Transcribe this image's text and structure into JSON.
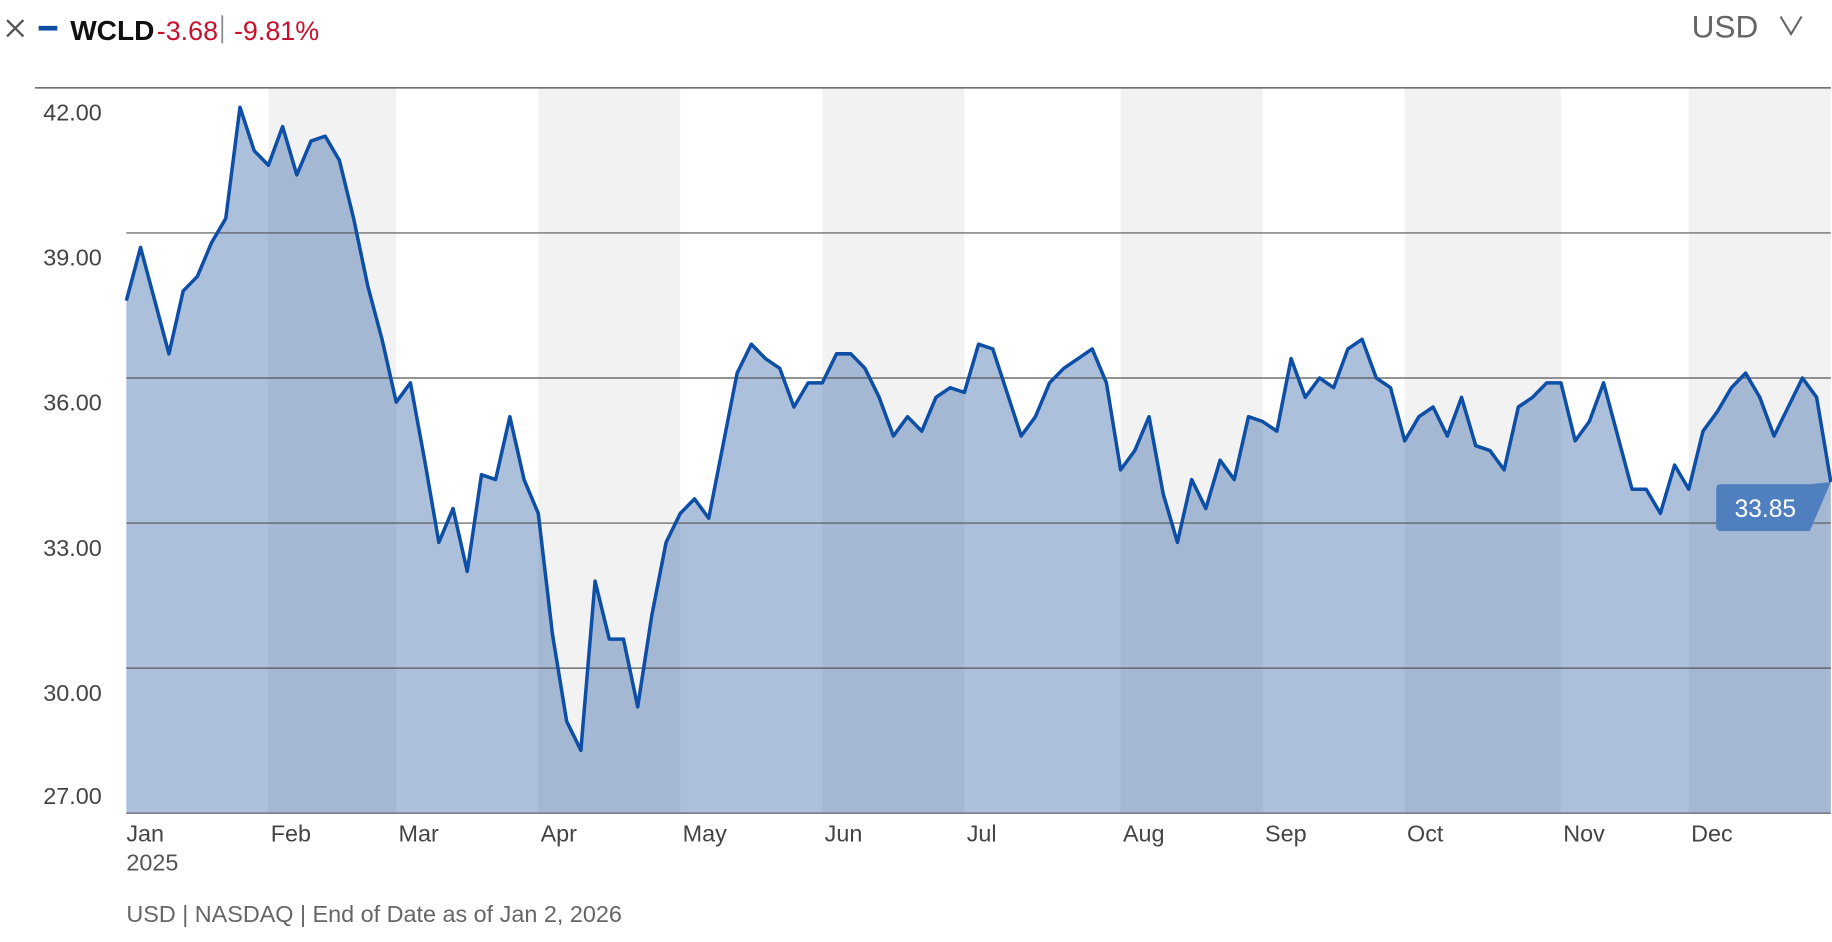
{
  "chart_data": {
    "type": "area",
    "symbol": "WCLD",
    "change": -3.68,
    "change_pct": {
      "value": -9.81,
      "label": "-9.81%"
    },
    "currency": "USD",
    "x_year_label": "2025",
    "footnote": "USD | NASDAQ | End of Date as of Jan 2, 2026",
    "current_value": 33.85,
    "categories": [
      "Jan",
      null,
      null,
      null,
      null,
      null,
      null,
      null,
      null,
      null,
      "Feb",
      null,
      null,
      null,
      null,
      null,
      null,
      null,
      null,
      "Mar",
      null,
      null,
      null,
      null,
      null,
      null,
      null,
      null,
      null,
      "Apr",
      null,
      null,
      null,
      null,
      null,
      null,
      null,
      null,
      null,
      "May",
      null,
      null,
      null,
      null,
      null,
      null,
      null,
      null,
      null,
      "Jun",
      null,
      null,
      null,
      null,
      null,
      null,
      null,
      null,
      null,
      "Jul",
      null,
      null,
      null,
      null,
      null,
      null,
      null,
      null,
      null,
      null,
      "Aug",
      null,
      null,
      null,
      null,
      null,
      null,
      null,
      null,
      null,
      "Sep",
      null,
      null,
      null,
      null,
      null,
      null,
      null,
      null,
      null,
      "Oct",
      null,
      null,
      null,
      null,
      null,
      null,
      null,
      null,
      null,
      null,
      "Nov",
      null,
      null,
      null,
      null,
      null,
      null,
      null,
      null,
      "Dec",
      null,
      null,
      null,
      null,
      null,
      null,
      null,
      null,
      null,
      null
    ],
    "series": [
      {
        "name": "WCLD",
        "color": "#0d4ea6",
        "values": [
          37.6,
          38.7,
          37.6,
          36.5,
          37.8,
          38.1,
          38.8,
          39.3,
          41.6,
          40.7,
          40.4,
          41.2,
          40.2,
          40.9,
          41.0,
          40.5,
          39.3,
          37.9,
          36.8,
          35.5,
          35.9,
          34.3,
          32.6,
          33.3,
          32.0,
          34.0,
          33.9,
          35.2,
          33.9,
          33.2,
          30.7,
          28.9,
          28.3,
          31.8,
          30.6,
          30.6,
          29.2,
          31.1,
          32.6,
          33.2,
          33.5,
          33.1,
          34.6,
          36.1,
          36.7,
          36.4,
          36.2,
          35.4,
          35.9,
          35.9,
          36.5,
          36.5,
          36.2,
          35.6,
          34.8,
          35.2,
          34.9,
          35.6,
          35.8,
          35.7,
          36.7,
          36.6,
          35.7,
          34.8,
          35.2,
          35.9,
          36.2,
          36.4,
          36.6,
          35.9,
          34.1,
          34.5,
          35.2,
          33.6,
          32.6,
          33.9,
          33.3,
          34.3,
          33.9,
          35.2,
          35.1,
          34.9,
          36.4,
          35.6,
          36.0,
          35.8,
          36.6,
          36.8,
          36.0,
          35.8,
          34.7,
          35.2,
          35.4,
          34.8,
          35.6,
          34.6,
          34.5,
          34.1,
          35.4,
          35.6,
          35.9,
          35.9,
          34.7,
          35.1,
          35.9,
          34.8,
          33.7,
          33.7,
          33.2,
          34.2,
          33.7,
          34.9,
          35.3,
          35.8,
          36.1,
          35.6,
          34.8,
          35.4,
          36.0,
          35.6,
          33.85
        ]
      }
    ],
    "ylim": [
      27,
      42
    ],
    "yticks": [
      {
        "value": 27,
        "label": "27.00"
      },
      {
        "value": 30,
        "label": "30.00"
      },
      {
        "value": 33,
        "label": "33.00"
      },
      {
        "value": 36,
        "label": "36.00"
      },
      {
        "value": 39,
        "label": "39.00"
      },
      {
        "value": 42,
        "label": "42.00"
      }
    ],
    "grid": true
  }
}
